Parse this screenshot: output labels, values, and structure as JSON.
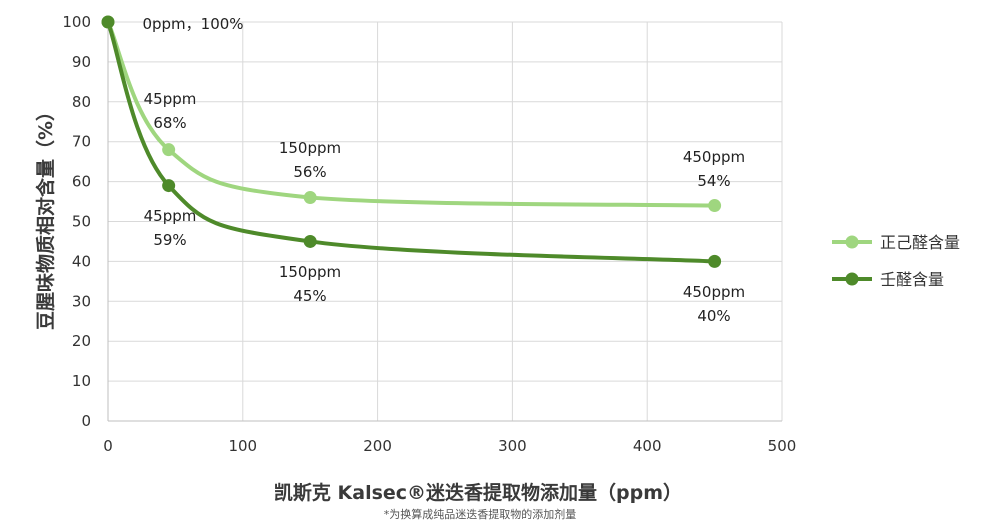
{
  "chart_data": {
    "type": "line",
    "title": "",
    "xlabel": "凯斯克 Kalsec®迷迭香提取物添加量（ppm）",
    "ylabel": "豆腥味物质相对含量（%）",
    "note": "*为换算成纯品迷迭香提取物的添加剂量",
    "xlim": [
      0,
      500
    ],
    "ylim": [
      0,
      100
    ],
    "xticks": [
      "0",
      "100",
      "200",
      "300",
      "400",
      "500"
    ],
    "yticks": [
      "0",
      "10",
      "20",
      "30",
      "40",
      "50",
      "60",
      "70",
      "80",
      "90",
      "100"
    ],
    "grid": true,
    "legend_position": "right",
    "series": [
      {
        "name": "正己醛含量",
        "color": "#9fd67f",
        "x": [
          0,
          45,
          150,
          450
        ],
        "y": [
          100,
          68,
          56,
          54
        ]
      },
      {
        "name": "壬醛含量",
        "color": "#4e8a2a",
        "x": [
          0,
          45,
          150,
          450
        ],
        "y": [
          100,
          59,
          45,
          40
        ]
      }
    ],
    "annotations": [
      {
        "lines": [
          "0ppm，100%"
        ]
      },
      {
        "lines": [
          "45ppm",
          "68%"
        ]
      },
      {
        "lines": [
          "150ppm",
          "56%"
        ]
      },
      {
        "lines": [
          "450ppm",
          "54%"
        ]
      },
      {
        "lines": [
          "45ppm",
          "59%"
        ]
      },
      {
        "lines": [
          "150ppm",
          "45%"
        ]
      },
      {
        "lines": [
          "450ppm",
          "40%"
        ]
      }
    ]
  }
}
